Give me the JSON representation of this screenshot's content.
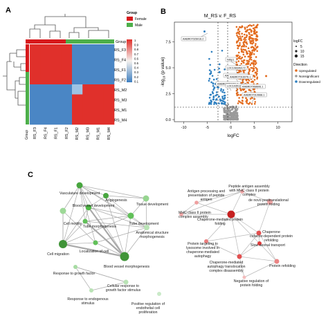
{
  "panels": {
    "a": "A",
    "b": "B",
    "c": "C"
  },
  "heatmap": {
    "row_labels": [
      "RS_F3",
      "RS_F4",
      "RS_F1",
      "RS_F2",
      "RS_M2",
      "RS_M3",
      "RS_M1",
      "RS_M4"
    ],
    "col_labels": [
      "RS_F3",
      "RS_F4",
      "RS_F1",
      "RS_F2",
      "RS_M2",
      "RS_M3",
      "RS_M1",
      "RS_M4"
    ],
    "group_label": "Group",
    "corner_label": "Group",
    "legend_title": "Group",
    "legend_items": [
      {
        "label": "Female",
        "color": "#d7191c"
      },
      {
        "label": "Male",
        "color": "#4daf4a"
      }
    ],
    "colorbar_ticks": [
      "1",
      "0.9",
      "0.8",
      "0.7",
      "0.6",
      "0.5",
      "0.4",
      "0.3",
      "0.2",
      "0.1"
    ],
    "colors": {
      "high": "#e0302b",
      "low": "#4a86c5",
      "mid": "#9ec3e4"
    }
  },
  "volcano": {
    "title": "M_RS v. F_RS",
    "xlabel": "logFC",
    "ylabel_prefix": "-log",
    "ylabel_sub": "10",
    "ylabel_suffix": " (p value)",
    "x_ticks": [
      "-10",
      "-5",
      "0",
      "5",
      "10"
    ],
    "y_ticks": [
      "0.0",
      "2.5",
      "5.0",
      "7.5"
    ],
    "labels": [
      "AABR07026016.2",
      "Nrbp1",
      "LOC108348172",
      "AABR07053060.1",
      "AABR07016076.1",
      "AABR07063431.1",
      "LOC103512229",
      "AABR07068606.1",
      "AABR07010668.1"
    ],
    "legend": {
      "size_title": "logFC",
      "sizes": [
        "5",
        "10",
        "15"
      ],
      "direction_title": "Direction",
      "directions": [
        {
          "label": "Upregulated",
          "color": "#e36c1f"
        },
        {
          "label": "Nonsignificant",
          "color": "#9a9a9a"
        },
        {
          "label": "Downregulated",
          "color": "#2d7fc0"
        }
      ]
    }
  },
  "networks": {
    "left": {
      "color": "#3aa335",
      "nodes": [
        "Vasculature development",
        "Angiogenesis",
        "Blood vessel development",
        "Tissue development",
        "Cell motility",
        "Tube morphogenesis",
        "Tube development",
        "Anatomical structure morphogenesis",
        "Localization of cell",
        "Cell migration",
        "Blood vessel morphogenesis",
        "Response to growth factor",
        "Cellular response to growth factor stimulus",
        "Response to endogenous stimulus",
        "Positive regulation of endothelial cell proliferation"
      ]
    },
    "right": {
      "color": "#e0302b",
      "nodes": [
        "Antigen processing and presentation of peptide antigen",
        "Peptide antigen assembly with MHC class II protein complex",
        "de novo posttranslational protein folding",
        "MHC class II protein complex assembly",
        "Chaperone-mediated protein folding",
        "Chaperone cofactor-dependent protein refolding",
        "Protein targeting to lysosome involved in chaperone-mediated autophagy",
        "Slow axonal transport",
        "Chaperone-mediated autophagy translocation complex disassembly",
        "Protein refolding",
        "Negative regulation of protein folding"
      ]
    }
  }
}
